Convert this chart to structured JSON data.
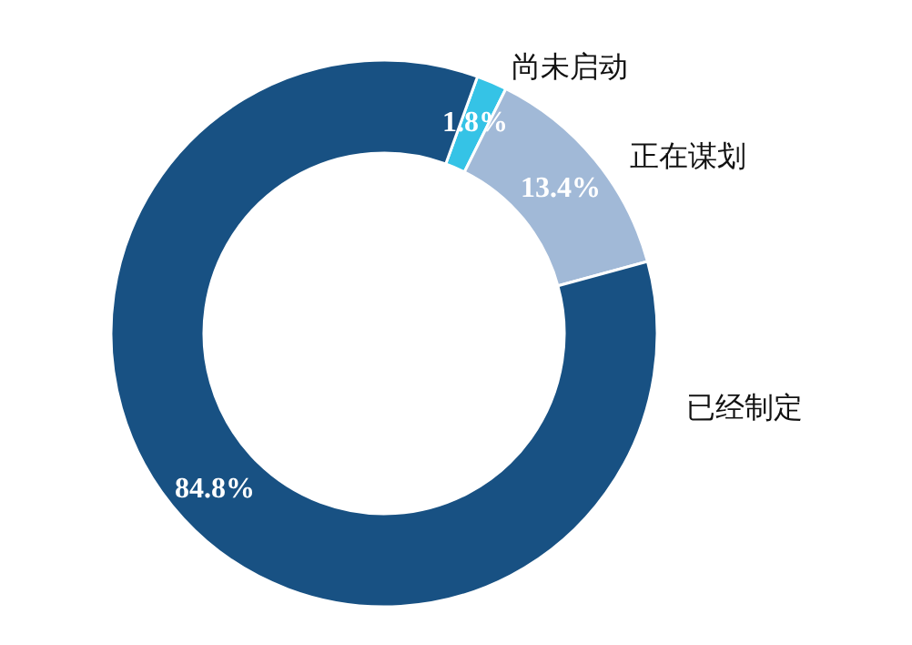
{
  "chart_data": {
    "type": "donut",
    "categories": [
      "尚未启动",
      "正在谋划",
      "已经制定"
    ],
    "values": [
      1.8,
      13.4,
      84.8
    ],
    "colors": [
      "#35c3e6",
      "#a1b9d7",
      "#185183"
    ],
    "value_labels": [
      "1.8%",
      "13.4%",
      "84.8%"
    ],
    "legend": false
  }
}
